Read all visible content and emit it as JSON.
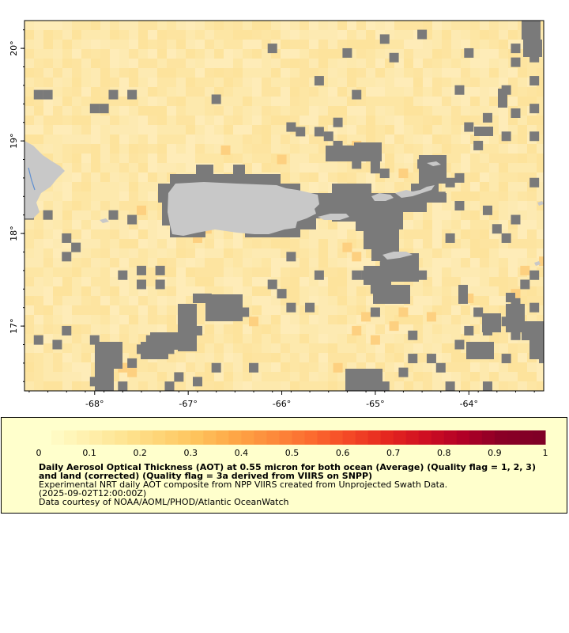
{
  "map": {
    "lon_labels": [
      "-68°",
      "-67°",
      "-66°",
      "-65°",
      "-64°"
    ],
    "lat_labels": [
      "20°",
      "19°",
      "18°",
      "17°"
    ],
    "lon_ticks": [
      -68,
      -67,
      -66,
      -65,
      -64
    ],
    "lat_ticks": [
      20,
      19,
      18,
      17
    ],
    "lon_range": [
      -68.75,
      -63.2
    ],
    "lat_range": [
      16.3,
      20.3
    ],
    "colors": {
      "ocean_base": "#fde8a8",
      "missing_data": "#7a7a7a",
      "land": "#c8c8c8",
      "lake": "#5f8fd0"
    },
    "missing_cells": [
      [
        -68.6,
        19.5
      ],
      [
        -68.5,
        19.5
      ],
      [
        -68.0,
        19.35
      ],
      [
        -67.9,
        19.35
      ],
      [
        -67.8,
        19.5
      ],
      [
        -67.6,
        19.5
      ],
      [
        -65.9,
        19.15
      ],
      [
        -65.8,
        19.1
      ],
      [
        -65.6,
        19.1
      ],
      [
        -65.5,
        19.05
      ],
      [
        -65.4,
        18.95
      ],
      [
        -65.3,
        18.9
      ],
      [
        -65.4,
        18.85
      ],
      [
        -65.2,
        18.75
      ],
      [
        -65.0,
        18.8
      ],
      [
        -65.0,
        18.7
      ],
      [
        -64.9,
        18.65
      ],
      [
        -64.5,
        18.75
      ],
      [
        -64.3,
        18.65
      ],
      [
        -64.2,
        18.55
      ],
      [
        -64.1,
        18.6
      ],
      [
        -65.2,
        17.55
      ],
      [
        -65.1,
        17.55
      ],
      [
        -65.0,
        17.55
      ],
      [
        -64.9,
        17.65
      ],
      [
        -64.8,
        17.55
      ],
      [
        -64.5,
        17.55
      ],
      [
        -65.0,
        17.4
      ],
      [
        -64.9,
        17.4
      ],
      [
        -64.8,
        17.3
      ],
      [
        -65.0,
        17.15
      ],
      [
        -66.9,
        17.3
      ],
      [
        -66.8,
        17.3
      ],
      [
        -66.7,
        17.2
      ],
      [
        -66.6,
        17.2
      ],
      [
        -66.5,
        17.15
      ],
      [
        -66.4,
        17.15
      ],
      [
        -67.0,
        17.05
      ],
      [
        -66.9,
        16.95
      ],
      [
        -67.0,
        16.85
      ],
      [
        -67.1,
        16.85
      ],
      [
        -67.2,
        16.75
      ],
      [
        -67.3,
        16.7
      ],
      [
        -67.4,
        16.85
      ],
      [
        -67.5,
        16.75
      ],
      [
        -67.6,
        16.6
      ],
      [
        -67.8,
        16.65
      ],
      [
        -67.9,
        16.45
      ],
      [
        -68.0,
        16.4
      ],
      [
        -67.7,
        16.35
      ],
      [
        -67.2,
        16.35
      ],
      [
        -67.1,
        16.45
      ],
      [
        -66.9,
        16.4
      ],
      [
        -66.7,
        16.55
      ],
      [
        -66.3,
        16.55
      ],
      [
        -65.1,
        16.4
      ],
      [
        -65.0,
        16.4
      ],
      [
        -64.9,
        16.35
      ],
      [
        -65.2,
        16.35
      ],
      [
        -64.6,
        16.65
      ],
      [
        -64.4,
        16.65
      ],
      [
        -64.7,
        16.5
      ],
      [
        -64.2,
        16.35
      ],
      [
        -63.8,
        16.35
      ],
      [
        -63.6,
        16.65
      ],
      [
        -63.5,
        16.9
      ],
      [
        -63.4,
        17.0
      ],
      [
        -63.3,
        17.2
      ],
      [
        -63.2,
        16.75
      ],
      [
        -63.2,
        16.65
      ],
      [
        -63.5,
        17.25
      ],
      [
        -63.6,
        17.05
      ],
      [
        -63.8,
        16.95
      ],
      [
        -64.0,
        16.95
      ],
      [
        -64.1,
        16.8
      ],
      [
        -63.9,
        17.15
      ],
      [
        -64.3,
        16.55
      ],
      [
        -64.6,
        16.9
      ],
      [
        -68.3,
        17.75
      ],
      [
        -68.2,
        17.85
      ],
      [
        -68.3,
        17.95
      ],
      [
        -67.7,
        17.55
      ],
      [
        -67.5,
        17.45
      ],
      [
        -67.3,
        17.45
      ],
      [
        -66.1,
        17.45
      ],
      [
        -66.0,
        17.35
      ],
      [
        -65.9,
        17.2
      ],
      [
        -65.7,
        17.2
      ],
      [
        -65.6,
        17.55
      ],
      [
        -65.9,
        17.75
      ],
      [
        -63.8,
        18.25
      ],
      [
        -63.7,
        18.05
      ],
      [
        -63.6,
        17.95
      ],
      [
        -63.3,
        17.55
      ],
      [
        -63.4,
        17.45
      ],
      [
        -64.2,
        17.95
      ],
      [
        -64.3,
        18.4
      ],
      [
        -63.9,
        18.95
      ],
      [
        -63.6,
        19.05
      ],
      [
        -63.3,
        19.05
      ],
      [
        -63.5,
        19.3
      ],
      [
        -63.3,
        19.35
      ],
      [
        -63.8,
        19.25
      ],
      [
        -64.0,
        19.15
      ],
      [
        -63.6,
        19.55
      ],
      [
        -63.3,
        19.65
      ],
      [
        -63.5,
        19.85
      ],
      [
        -63.5,
        20.0
      ],
      [
        -63.3,
        19.9
      ],
      [
        -64.0,
        19.95
      ],
      [
        -64.5,
        20.15
      ],
      [
        -64.1,
        19.55
      ],
      [
        -64.8,
        19.9
      ],
      [
        -64.9,
        20.1
      ],
      [
        -65.3,
        19.95
      ],
      [
        -65.6,
        19.65
      ],
      [
        -65.2,
        19.5
      ],
      [
        -65.4,
        19.2
      ],
      [
        -66.1,
        20.0
      ],
      [
        -66.7,
        19.45
      ],
      [
        -64.1,
        18.3
      ],
      [
        -63.5,
        18.15
      ],
      [
        -68.7,
        18.2
      ],
      [
        -68.5,
        18.2
      ],
      [
        -67.8,
        18.2
      ],
      [
        -67.6,
        18.15
      ],
      [
        -68.6,
        16.85
      ],
      [
        -68.4,
        16.8
      ],
      [
        -68.3,
        16.95
      ],
      [
        -68.0,
        16.85
      ],
      [
        -67.5,
        17.6
      ],
      [
        -67.3,
        17.6
      ],
      [
        -63.3,
        18.55
      ]
    ],
    "warm_cells": [
      [
        -65.4,
        18.85
      ],
      [
        -65.2,
        18.95
      ],
      [
        -64.7,
        18.65
      ],
      [
        -65.3,
        17.85
      ],
      [
        -65.2,
        17.75
      ],
      [
        -65.1,
        17.1
      ],
      [
        -65.2,
        16.95
      ],
      [
        -65.0,
        16.85
      ],
      [
        -65.4,
        16.55
      ],
      [
        -66.3,
        17.05
      ],
      [
        -66.9,
        17.95
      ],
      [
        -66.8,
        18.05
      ],
      [
        -67.5,
        18.25
      ],
      [
        -64.8,
        17.0
      ],
      [
        -64.7,
        17.15
      ],
      [
        -63.5,
        17.35
      ],
      [
        -63.4,
        17.6
      ],
      [
        -63.2,
        17.7
      ],
      [
        -67.7,
        16.55
      ],
      [
        -67.6,
        16.5
      ],
      [
        -66.6,
        18.9
      ],
      [
        -66.0,
        18.8
      ],
      [
        -64.0,
        17.3
      ],
      [
        -64.4,
        17.1
      ]
    ]
  },
  "legend": {
    "ticks": [
      "0",
      "0.1",
      "0.2",
      "0.3",
      "0.4",
      "0.5",
      "0.6",
      "0.7",
      "0.8",
      "0.9",
      "1"
    ],
    "range": [
      0,
      1
    ],
    "colormap": [
      "#ffffcc",
      "#fff1b0",
      "#fee594",
      "#fed577",
      "#fec35c",
      "#fea646",
      "#fd8a3b",
      "#fc6b2f",
      "#f44826",
      "#e5271f",
      "#cf0f22",
      "#b10026",
      "#8a0026",
      "#800026"
    ],
    "title": "Daily Aerosol Optical Thickness (AOT) at 0.55 micron for both ocean (Average) (Quality flag = 1, 2, 3) and land (corrected) (Quality flag = 3a derived from VIIRS on SNPP)",
    "subtitle": "Experimental NRT daily AOT composite from NPP VIIRS created from Unprojected Swath Data.",
    "time": "(2025-09-02T12:00:00Z)",
    "credit": "Data courtesy of NOAA/AOML/PHOD/Atlantic OceanWatch"
  }
}
